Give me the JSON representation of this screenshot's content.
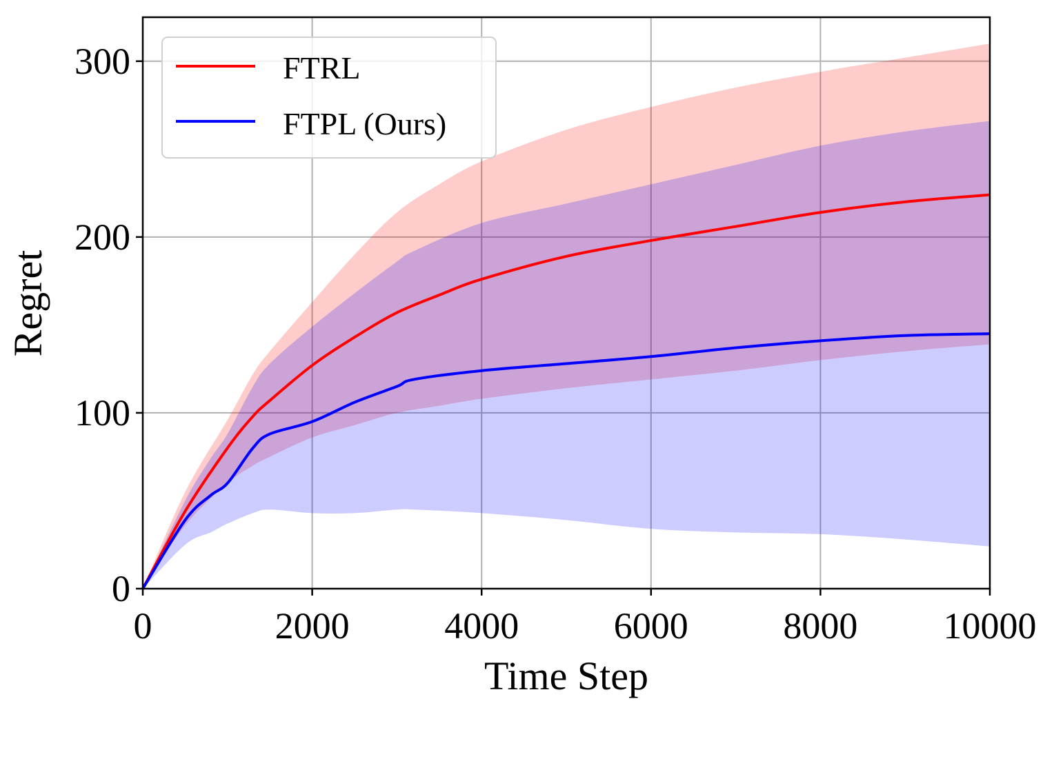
{
  "chart_data": {
    "type": "line",
    "xlabel": "Time Step",
    "ylabel": "Regret",
    "xlim": [
      0,
      10000
    ],
    "ylim": [
      0,
      325
    ],
    "xticks": [
      0,
      2000,
      4000,
      6000,
      8000,
      10000
    ],
    "yticks": [
      0,
      100,
      200,
      300
    ],
    "xtick_labels": [
      "0",
      "2000",
      "4000",
      "6000",
      "8000",
      "10000"
    ],
    "ytick_labels": [
      "0",
      "100",
      "200",
      "300"
    ],
    "grid": true,
    "legend_position": "top-left",
    "series": [
      {
        "name": "FTRL",
        "color": "#ff0000",
        "band_color": "#ff0000",
        "x": [
          0,
          500,
          1000,
          1300,
          1500,
          2000,
          2500,
          3000,
          3500,
          4000,
          5000,
          6000,
          7000,
          8000,
          9000,
          10000
        ],
        "mean": [
          0,
          44,
          80,
          98,
          107,
          127,
          143,
          157,
          167,
          176,
          189,
          198,
          206,
          214,
          220,
          224
        ],
        "upper": [
          0,
          55,
          96,
          122,
          135,
          163,
          190,
          214,
          230,
          243,
          261,
          274,
          285,
          294,
          302,
          310
        ],
        "lower": [
          0,
          36,
          60,
          70,
          75,
          86,
          93,
          100,
          104,
          108,
          114,
          119,
          124,
          130,
          135,
          139
        ]
      },
      {
        "name": "FTPL (Ours)",
        "color": "#0000ff",
        "band_color": "#0000ff",
        "x": [
          0,
          500,
          800,
          1000,
          1300,
          1500,
          2000,
          2500,
          3000,
          3200,
          4000,
          5000,
          6000,
          7000,
          8000,
          9000,
          10000
        ],
        "mean": [
          0,
          39,
          53,
          60,
          80,
          88,
          95,
          106,
          115,
          119,
          124,
          128,
          132,
          137,
          141,
          144,
          145
        ],
        "upper": [
          0,
          50,
          74,
          88,
          115,
          128,
          149,
          168,
          186,
          192,
          208,
          219,
          230,
          241,
          252,
          260,
          266
        ],
        "lower": [
          0,
          25,
          32,
          37,
          43,
          45,
          43,
          43,
          45,
          45,
          43,
          39,
          34,
          32,
          31,
          28,
          24
        ]
      }
    ]
  }
}
